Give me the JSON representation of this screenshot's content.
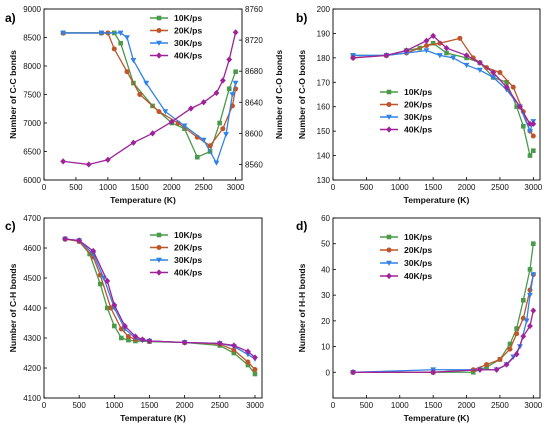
{
  "series_colors": {
    "10K/ps": "#4a9a4a",
    "20K/ps": "#c0542a",
    "30K/ps": "#2f82e6",
    "40K/ps": "#a0229a"
  },
  "chart_data": [
    {
      "panel": "a)",
      "type": "line",
      "xlabel": "Temperature (K)",
      "ylabel": "Number of C-C bonds",
      "ylabel2": "Number of C-O bonds",
      "xlim": [
        0,
        3100
      ],
      "ylim": [
        6000,
        9000
      ],
      "ylim2": [
        8540,
        8760
      ],
      "xticks": [
        0,
        500,
        1000,
        1500,
        2000,
        2500,
        3000
      ],
      "yticks": [
        6000,
        6500,
        7000,
        7500,
        8000,
        8500,
        9000
      ],
      "yticks2": [
        8560,
        8600,
        8640,
        8680,
        8720,
        8760
      ],
      "legend": "top-right",
      "series": [
        {
          "name": "10K/ps",
          "axis": "left",
          "x": [
            300,
            900,
            1100,
            1200,
            1400,
            1700,
            2000,
            2200,
            2400,
            2600,
            2750,
            2900,
            3000
          ],
          "y": [
            8580,
            8580,
            8580,
            8400,
            7700,
            7300,
            7000,
            6900,
            6400,
            6500,
            7000,
            7600,
            7900
          ]
        },
        {
          "name": "20K/ps",
          "axis": "left",
          "x": [
            300,
            900,
            1000,
            1100,
            1300,
            1500,
            1800,
            2100,
            2400,
            2600,
            2800,
            2950,
            3000
          ],
          "y": [
            8580,
            8580,
            8580,
            8300,
            7900,
            7500,
            7200,
            7000,
            6750,
            6600,
            6900,
            7300,
            7600
          ]
        },
        {
          "name": "30K/ps",
          "axis": "left",
          "x": [
            300,
            900,
            1200,
            1300,
            1400,
            1600,
            1900,
            2200,
            2500,
            2700,
            2850,
            2950,
            3000
          ],
          "y": [
            8580,
            8580,
            8580,
            8500,
            8100,
            7700,
            7200,
            6950,
            6700,
            6300,
            6800,
            7500,
            7700
          ]
        },
        {
          "name": "40K/ps",
          "axis": "right",
          "x": [
            300,
            700,
            1000,
            1400,
            1700,
            2000,
            2300,
            2500,
            2700,
            2800,
            2900,
            3000
          ],
          "y": [
            8564,
            8560,
            8566,
            8588,
            8600,
            8615,
            8632,
            8640,
            8652,
            8668,
            8695,
            8730
          ]
        }
      ]
    },
    {
      "panel": "b)",
      "type": "line",
      "xlabel": "Temperature (K)",
      "ylabel": "Number of C-O bonds",
      "xlim": [
        0,
        3100
      ],
      "ylim": [
        130,
        200
      ],
      "xticks": [
        0,
        500,
        1000,
        1500,
        2000,
        2500,
        3000
      ],
      "yticks": [
        130,
        140,
        150,
        160,
        170,
        180,
        190,
        200
      ],
      "legend": "left",
      "series": [
        {
          "name": "10K/ps",
          "x": [
            300,
            800,
            1100,
            1300,
            1500,
            1700,
            2000,
            2200,
            2400,
            2600,
            2750,
            2850,
            2950,
            3000
          ],
          "y": [
            181,
            181,
            183,
            184,
            186,
            182,
            180,
            178,
            172,
            170,
            160,
            152,
            140,
            142
          ]
        },
        {
          "name": "20K/ps",
          "x": [
            300,
            800,
            1100,
            1400,
            1600,
            1900,
            2100,
            2300,
            2500,
            2700,
            2850,
            2950,
            3000
          ],
          "y": [
            180,
            181,
            182,
            185,
            186,
            188,
            180,
            176,
            174,
            168,
            158,
            150,
            148
          ]
        },
        {
          "name": "30K/ps",
          "x": [
            300,
            800,
            1100,
            1400,
            1600,
            1800,
            2000,
            2200,
            2400,
            2600,
            2800,
            2950,
            3000
          ],
          "y": [
            181,
            181,
            182,
            183,
            181,
            180,
            177,
            175,
            172,
            167,
            160,
            150,
            154
          ]
        },
        {
          "name": "40K/ps",
          "x": [
            300,
            800,
            1100,
            1400,
            1500,
            1700,
            2000,
            2200,
            2400,
            2600,
            2800,
            2950,
            3000
          ],
          "y": [
            180,
            181,
            183,
            187,
            189,
            184,
            181,
            178,
            174,
            168,
            160,
            153,
            153
          ]
        }
      ]
    },
    {
      "panel": "c)",
      "type": "line",
      "xlabel": "Temperature (K)",
      "ylabel": "Number of C-H bonds",
      "xlim": [
        0,
        3100
      ],
      "ylim": [
        4100,
        4700
      ],
      "xticks": [
        0,
        500,
        1000,
        1500,
        2000,
        2500,
        3000
      ],
      "yticks": [
        4100,
        4200,
        4300,
        4400,
        4500,
        4600,
        4700
      ],
      "legend": "top-right",
      "series": [
        {
          "name": "10K/ps",
          "x": [
            300,
            500,
            650,
            800,
            900,
            1000,
            1100,
            1200,
            1300,
            1500,
            2000,
            2500,
            2700,
            2900,
            3000
          ],
          "y": [
            4630,
            4622,
            4580,
            4480,
            4400,
            4340,
            4300,
            4293,
            4290,
            4288,
            4285,
            4275,
            4250,
            4210,
            4180
          ]
        },
        {
          "name": "20K/ps",
          "x": [
            300,
            500,
            700,
            800,
            950,
            1100,
            1200,
            1300,
            1500,
            2000,
            2500,
            2700,
            2900,
            3000
          ],
          "y": [
            4630,
            4622,
            4570,
            4510,
            4400,
            4330,
            4305,
            4295,
            4290,
            4285,
            4280,
            4260,
            4220,
            4195
          ]
        },
        {
          "name": "30K/ps",
          "x": [
            300,
            500,
            700,
            850,
            1000,
            1150,
            1300,
            1400,
            1500,
            2000,
            2500,
            2700,
            2900,
            3000
          ],
          "y": [
            4630,
            4625,
            4580,
            4500,
            4400,
            4330,
            4300,
            4292,
            4290,
            4285,
            4282,
            4272,
            4245,
            4230
          ]
        },
        {
          "name": "40K/ps",
          "x": [
            300,
            500,
            700,
            900,
            1000,
            1150,
            1300,
            1400,
            1500,
            2000,
            2500,
            2700,
            2900,
            3000
          ],
          "y": [
            4630,
            4625,
            4590,
            4490,
            4410,
            4340,
            4305,
            4295,
            4290,
            4285,
            4282,
            4275,
            4255,
            4235
          ]
        }
      ]
    },
    {
      "panel": "d)",
      "type": "line",
      "xlabel": "Temperature (K)",
      "ylabel": "Number of H-H bonds",
      "xlim": [
        0,
        3100
      ],
      "ylim": [
        -10,
        60
      ],
      "xticks": [
        0,
        500,
        1000,
        1500,
        2000,
        2500,
        3000
      ],
      "yticks": [
        0,
        10,
        20,
        30,
        40,
        50,
        60
      ],
      "legend": "top-left",
      "series": [
        {
          "name": "10K/ps",
          "x": [
            300,
            1500,
            2100,
            2300,
            2500,
            2650,
            2750,
            2850,
            2950,
            3000
          ],
          "y": [
            0,
            0,
            0,
            2,
            5,
            11,
            17,
            28,
            40,
            50
          ]
        },
        {
          "name": "20K/ps",
          "x": [
            300,
            1500,
            2100,
            2300,
            2500,
            2650,
            2750,
            2850,
            2950,
            3000
          ],
          "y": [
            0,
            0,
            1,
            3,
            5,
            9,
            15,
            21,
            32,
            38
          ]
        },
        {
          "name": "30K/ps",
          "x": [
            300,
            1500,
            2200,
            2450,
            2600,
            2700,
            2800,
            2900,
            2950,
            3000
          ],
          "y": [
            0,
            1,
            1,
            1,
            3,
            6,
            10,
            20,
            30,
            38
          ]
        },
        {
          "name": "40K/ps",
          "x": [
            300,
            1500,
            2200,
            2450,
            2600,
            2750,
            2850,
            2950,
            3000
          ],
          "y": [
            0,
            0,
            1,
            1,
            3,
            7,
            14,
            18,
            24
          ]
        }
      ]
    }
  ]
}
